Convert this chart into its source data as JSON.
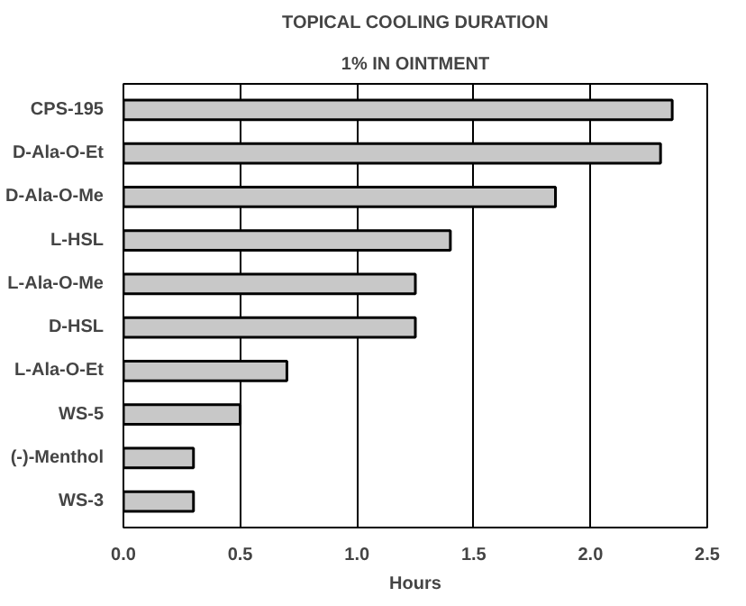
{
  "chart_data": {
    "type": "bar",
    "orientation": "horizontal",
    "title": "TOPICAL COOLING DURATION",
    "subtitle": "1% IN OINTMENT",
    "xlabel": "Hours",
    "categories": [
      "CPS-195",
      "D-Ala-O-Et",
      "D-Ala-O-Me",
      "L-HSL",
      "L-Ala-O-Me",
      "D-HSL",
      "L-Ala-O-Et",
      "WS-5",
      "(-)-Menthol",
      "WS-3"
    ],
    "values": [
      2.35,
      2.3,
      1.85,
      1.4,
      1.25,
      1.25,
      0.7,
      0.5,
      0.3,
      0.3
    ],
    "color": "#c8c8c8",
    "xlim": [
      0,
      2.5
    ],
    "xticks": [
      {
        "value": 0,
        "label": "0.0"
      },
      {
        "value": 0.5,
        "label": "0.5"
      },
      {
        "value": 1,
        "label": "1.0"
      },
      {
        "value": 1.5,
        "label": "1.5"
      },
      {
        "value": 2,
        "label": "2.0"
      },
      {
        "value": 2.5,
        "label": "2.5"
      }
    ],
    "grid": "x"
  }
}
